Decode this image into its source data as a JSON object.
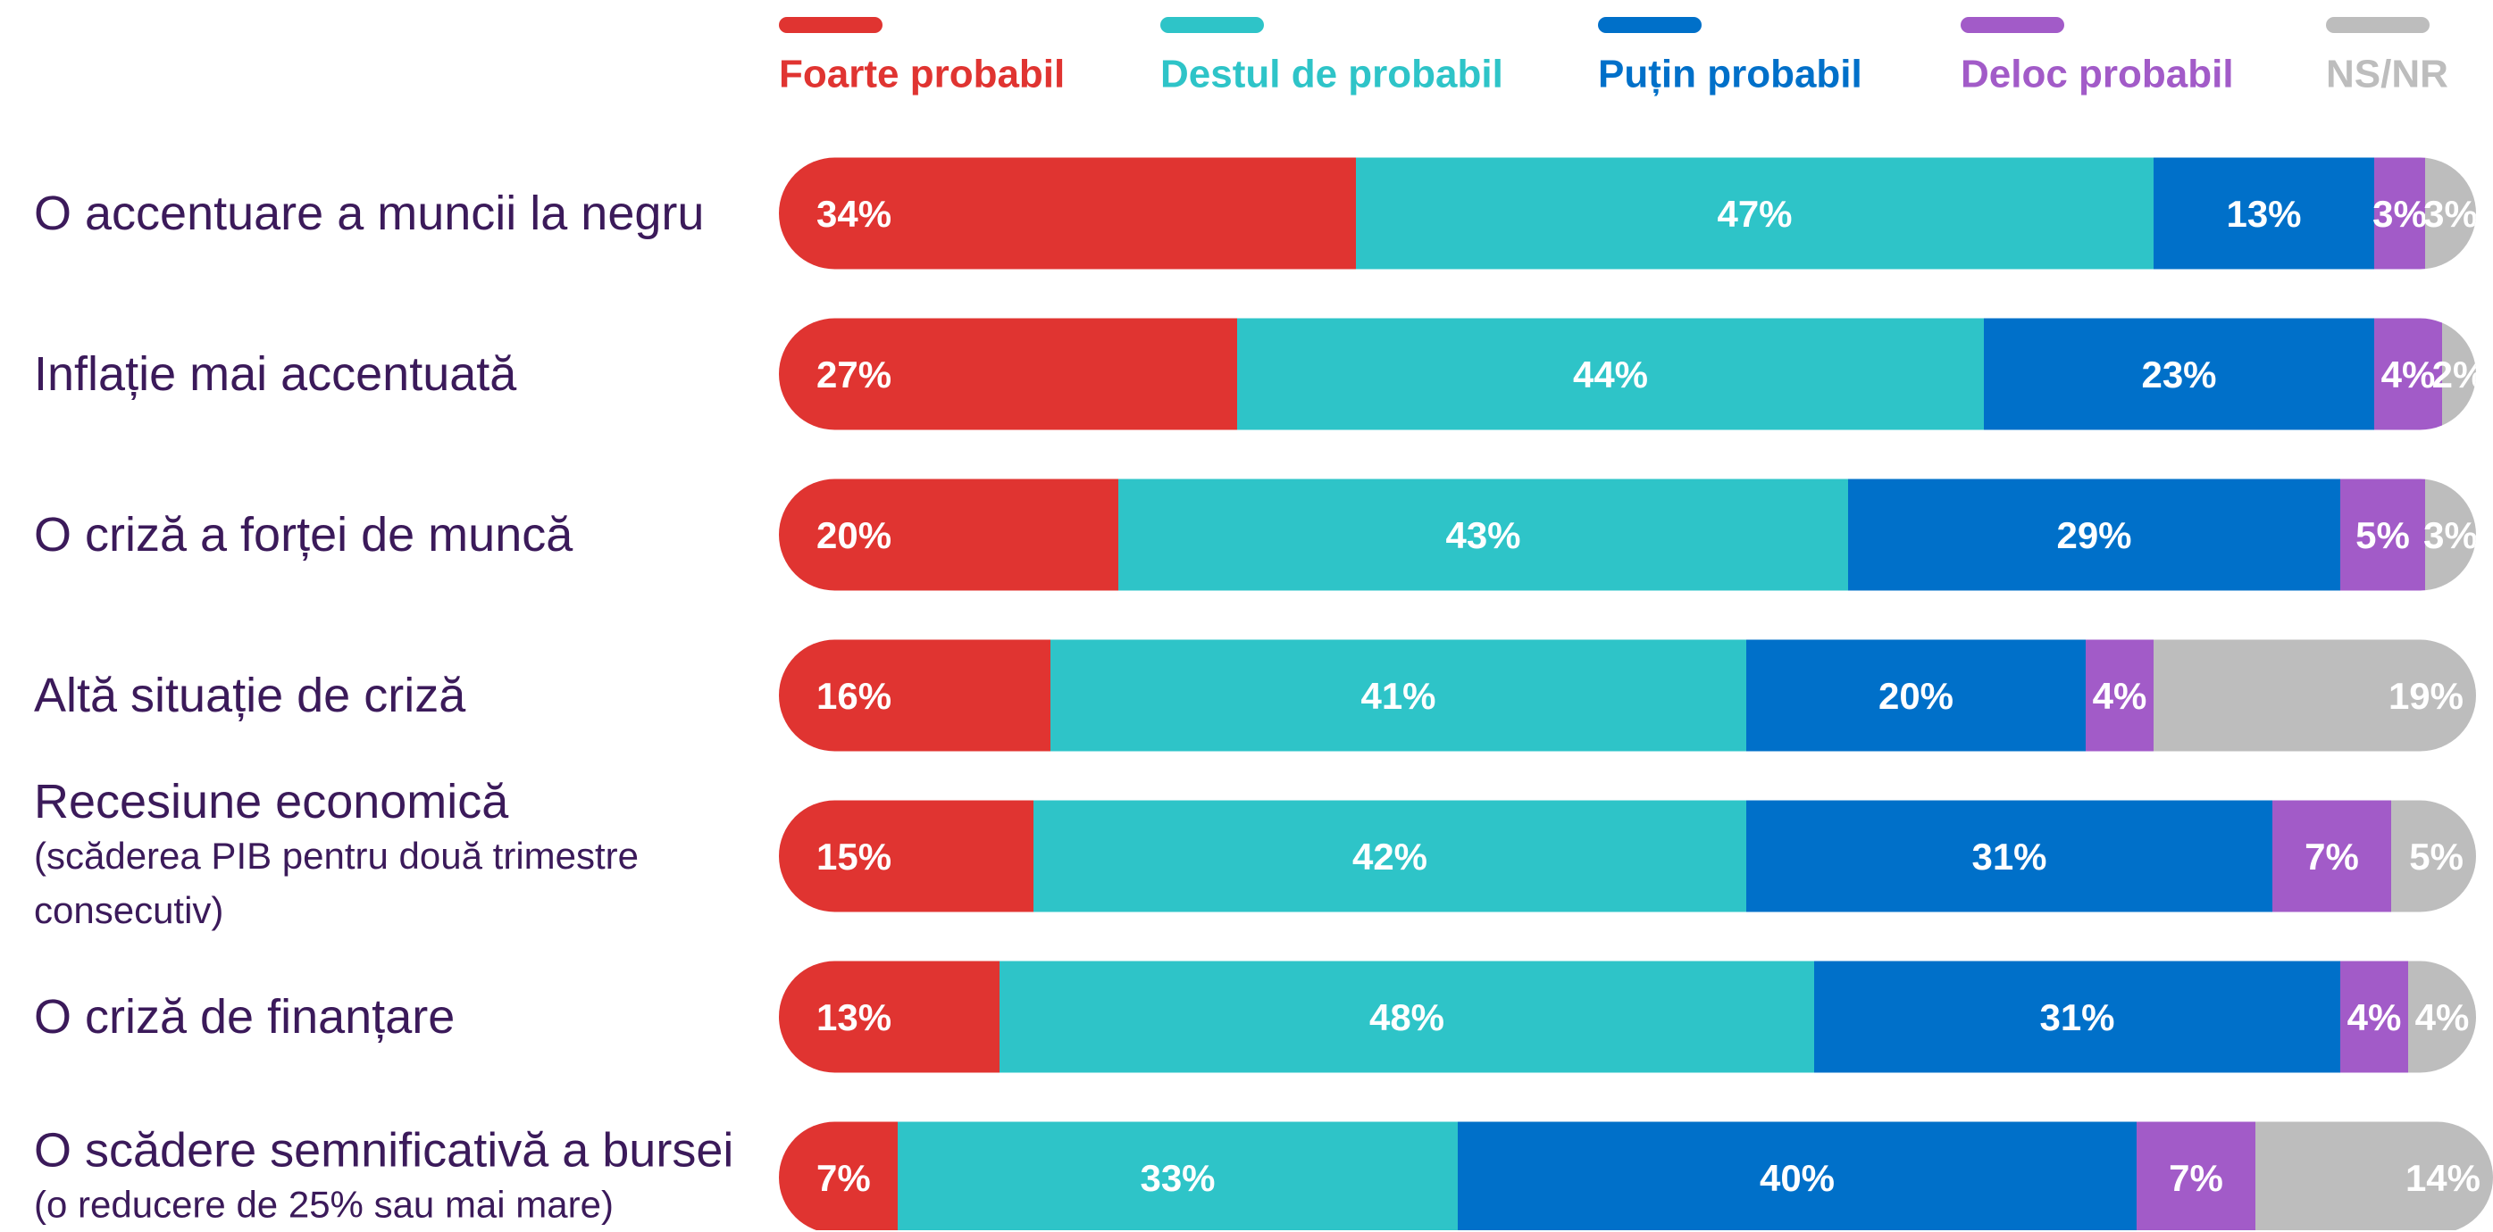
{
  "chart_data": {
    "type": "stacked-bar-horizontal",
    "categories": [
      "O accentuare a muncii la negru",
      "Inflație mai accentuată",
      "O criză a forței de muncă",
      "Altă situație de criză",
      "Recesiune economică",
      "O criză de finanțare",
      "O scădere semnificativă a  bursei"
    ],
    "category_notes": [
      null,
      null,
      null,
      null,
      "(scăderea PIB pentru două trimestre consecutiv)",
      null,
      "(o reducere de 25% sau mai mare)"
    ],
    "xlim": [
      0,
      100
    ],
    "legend": "top",
    "series": [
      {
        "name": "Foarte probabil",
        "color": "#e03431",
        "values": [
          34,
          27,
          20,
          16,
          15,
          13,
          7
        ],
        "value_labels": [
          "34%",
          "27%",
          "20%",
          "16%",
          "15%",
          "13%",
          "7%"
        ]
      },
      {
        "name": "Destul de probabil",
        "color": "#2ec4c8",
        "values": [
          47,
          44,
          43,
          41,
          42,
          48,
          33
        ],
        "value_labels": [
          "47%",
          "44%",
          "43%",
          "41%",
          "42%",
          "48%",
          "33%"
        ]
      },
      {
        "name": "Puțin probabil",
        "color": "#0070c9",
        "values": [
          13,
          23,
          29,
          20,
          31,
          31,
          40
        ],
        "value_labels": [
          "13%",
          "23%",
          "29%",
          "20%",
          "31%",
          "31%",
          "40%"
        ]
      },
      {
        "name": "Deloc probabil",
        "color": "#a25bc8",
        "values": [
          3,
          4,
          5,
          4,
          7,
          4,
          7
        ],
        "value_labels": [
          "3%",
          "4%",
          "5%",
          "4%",
          "7%",
          "4%",
          "7%"
        ]
      },
      {
        "name": "NS/NR",
        "color": "#bdbdbd",
        "values": [
          3,
          2,
          3,
          19,
          5,
          4,
          14
        ],
        "value_labels": [
          "3%",
          "2%",
          "3%",
          "19%",
          "5%",
          "4%",
          "14%"
        ]
      }
    ]
  }
}
